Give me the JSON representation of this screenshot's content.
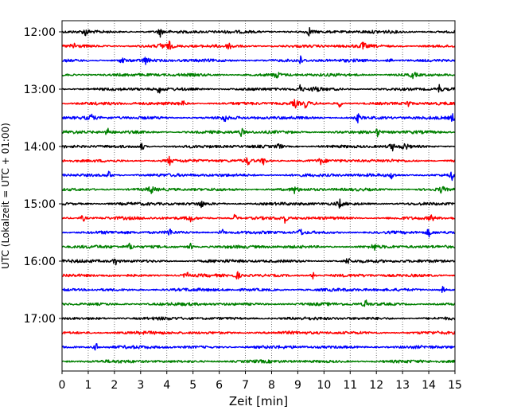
{
  "chart_data": {
    "type": "line",
    "title": "",
    "xlabel": "Zeit  [min]",
    "ylabel": "UTC (Lokalzeit = UTC + 01:00)",
    "xlim": [
      0,
      15
    ],
    "x_ticks": [
      "0",
      "1",
      "2",
      "3",
      "4",
      "5",
      "6",
      "7",
      "8",
      "9",
      "10",
      "11",
      "12",
      "13",
      "14",
      "15"
    ],
    "y_ticks": [
      "12:00",
      "13:00",
      "14:00",
      "15:00",
      "16:00",
      "17:00"
    ],
    "grid": "vertical-dotted",
    "color_cycle": [
      "#000000",
      "#ff0000",
      "#0000ff",
      "#008000"
    ],
    "traces": [
      {
        "start": "12:00",
        "events": [
          0.9,
          3.75,
          9.45
        ]
      },
      {
        "start": "12:15",
        "events": [
          0.45,
          3.8,
          4.1,
          6.4,
          11.5
        ]
      },
      {
        "start": "12:30",
        "events": [
          2.3,
          3.2,
          9.1,
          12.5
        ]
      },
      {
        "start": "12:45",
        "events": [
          8.2,
          13.4
        ]
      },
      {
        "start": "13:00",
        "events": [
          3.7,
          9.1,
          9.7,
          14.4
        ]
      },
      {
        "start": "13:15",
        "events": [
          4.6,
          8.9,
          9.3,
          10.6,
          13.2
        ]
      },
      {
        "start": "13:30",
        "events": [
          1.1,
          6.2,
          11.3,
          14.9
        ]
      },
      {
        "start": "13:45",
        "events": [
          1.75,
          6.85,
          12.05
        ]
      },
      {
        "start": "14:00",
        "events": [
          3.05,
          8.3,
          12.6,
          13.1
        ]
      },
      {
        "start": "14:15",
        "events": [
          4.1,
          7.1,
          7.7,
          9.9
        ]
      },
      {
        "start": "14:30",
        "events": [
          1.8,
          12.6,
          14.9
        ]
      },
      {
        "start": "14:45",
        "events": [
          3.4,
          8.9,
          14.5
        ]
      },
      {
        "start": "15:00",
        "events": [
          5.3,
          10.6
        ]
      },
      {
        "start": "15:15",
        "events": [
          0.8,
          4.9,
          6.6,
          8.5,
          14.1
        ]
      },
      {
        "start": "15:30",
        "events": [
          4.1,
          6.1,
          9.1,
          14.0
        ]
      },
      {
        "start": "15:45",
        "events": [
          2.6,
          4.9,
          11.9
        ]
      },
      {
        "start": "16:00",
        "events": [
          2.05,
          10.9
        ]
      },
      {
        "start": "16:15",
        "events": [
          4.75,
          6.7,
          9.6
        ]
      },
      {
        "start": "16:30",
        "events": [
          14.55
        ]
      },
      {
        "start": "16:45",
        "events": [
          11.6
        ]
      },
      {
        "start": "17:00",
        "events": []
      },
      {
        "start": "17:15",
        "events": []
      },
      {
        "start": "17:30",
        "events": [
          1.3
        ]
      },
      {
        "start": "17:45",
        "events": []
      }
    ]
  }
}
